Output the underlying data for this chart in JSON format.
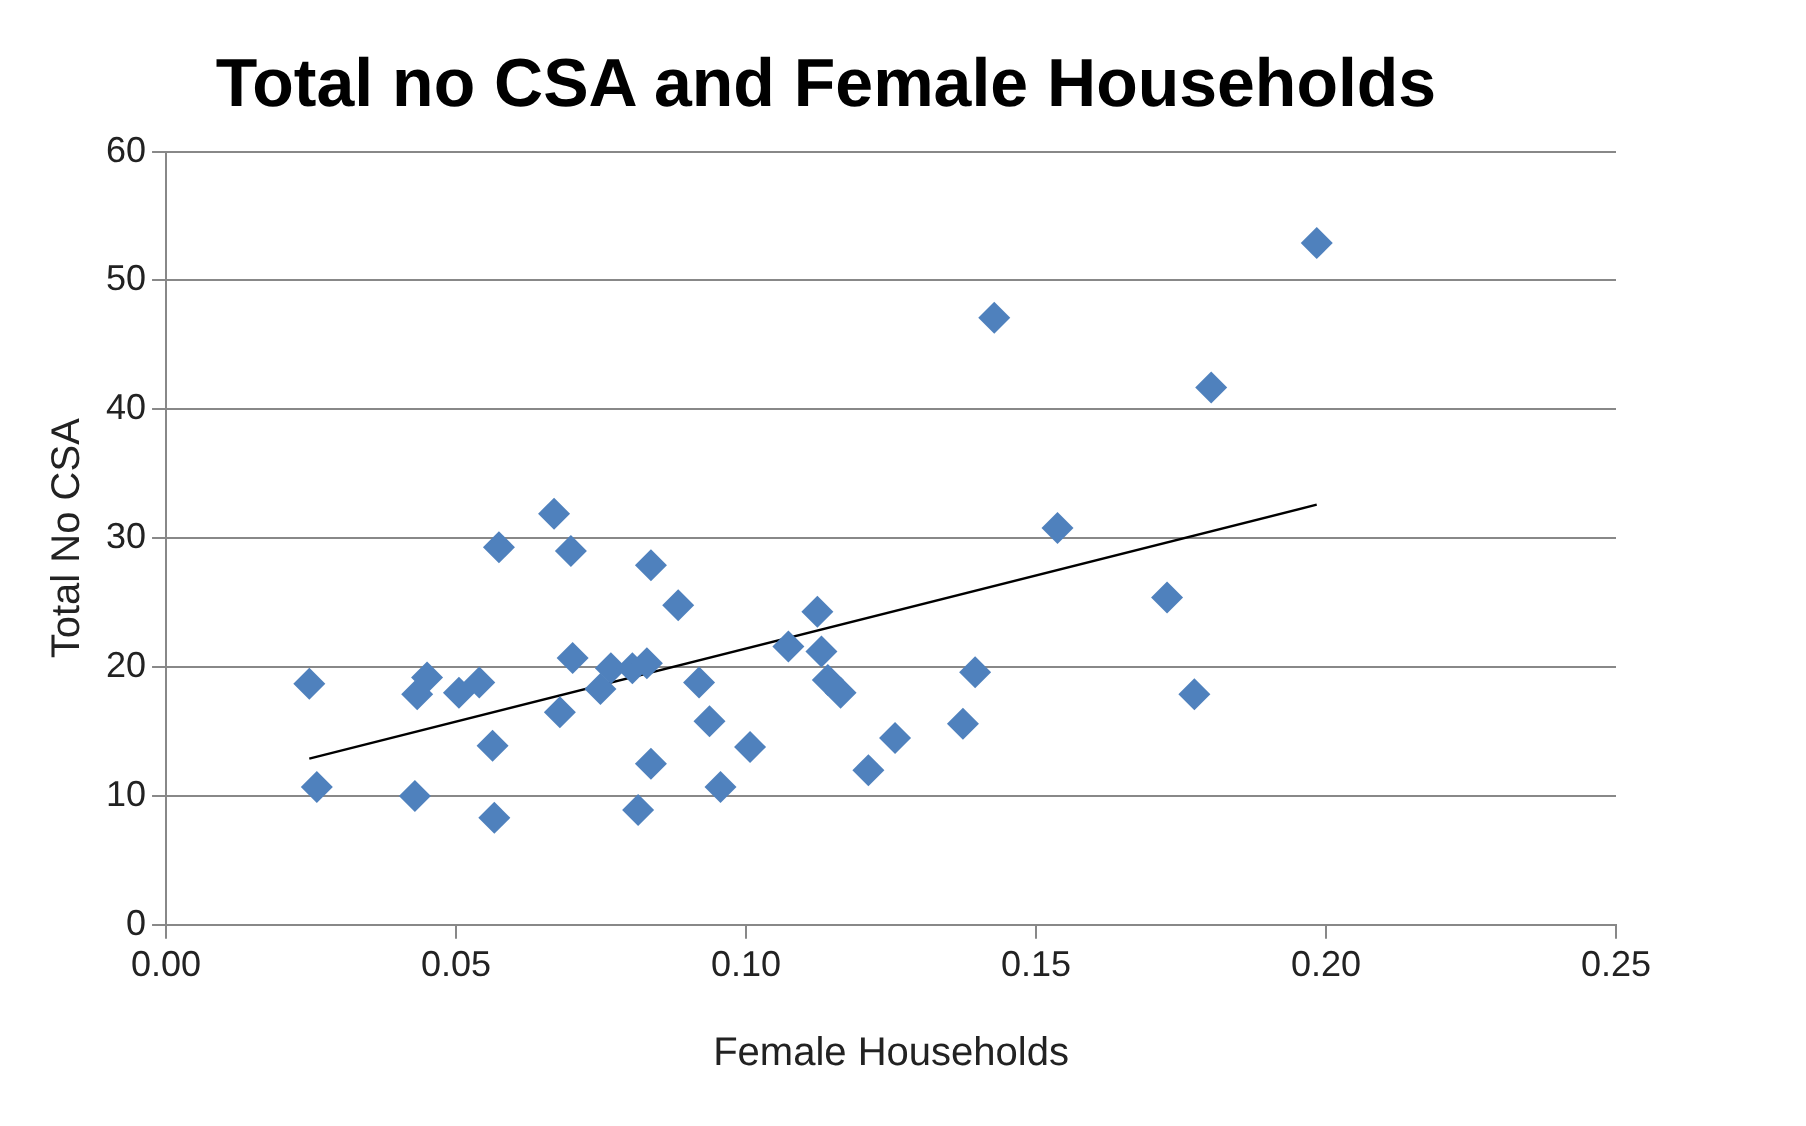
{
  "chart_data": {
    "type": "scatter",
    "title": "Total no CSA and Female Households",
    "xlabel": "Female Households",
    "ylabel": "Total No CSA",
    "xlim": [
      0,
      0.25
    ],
    "xticks": [
      {
        "value": 0,
        "label": "0.00"
      },
      {
        "value": 0.05,
        "label": "0.05"
      },
      {
        "value": 0.1,
        "label": "0.10"
      },
      {
        "value": 0.15,
        "label": "0.15"
      },
      {
        "value": 0.2,
        "label": "0.20"
      },
      {
        "value": 0.25,
        "label": "0.25"
      }
    ],
    "ylim": [
      0,
      60
    ],
    "yticks": [
      0,
      10,
      20,
      30,
      40,
      50,
      60
    ],
    "grid": "y",
    "legend": false,
    "marker": "diamond",
    "series": [
      {
        "type": "scatter",
        "color": "#4f81bd",
        "x": [
          0.0247,
          0.026,
          0.0429,
          0.0433,
          0.045,
          0.0505,
          0.054,
          0.0563,
          0.0566,
          0.0574,
          0.0669,
          0.0698,
          0.0701,
          0.0679,
          0.0749,
          0.0767,
          0.0804,
          0.0829,
          0.0836,
          0.0836,
          0.0814,
          0.0883,
          0.0919,
          0.0937,
          0.0956,
          0.1007,
          0.1073,
          0.1123,
          0.113,
          0.1141,
          0.1163,
          0.1211,
          0.1257,
          0.1374,
          0.1395,
          0.1428,
          0.1537,
          0.1726,
          0.1773,
          0.1802,
          0.1984
        ],
        "values": [
          18.7,
          10.7,
          10.0,
          17.9,
          19.2,
          18.0,
          18.8,
          13.9,
          8.3,
          29.3,
          31.9,
          29.0,
          20.7,
          16.5,
          18.3,
          19.9,
          19.9,
          20.3,
          27.9,
          12.5,
          8.9,
          24.8,
          18.8,
          15.8,
          10.7,
          13.8,
          21.6,
          24.3,
          21.2,
          19.0,
          18.0,
          12.0,
          14.5,
          15.6,
          19.6,
          47.1,
          30.8,
          25.4,
          17.9,
          41.7,
          52.9
        ]
      },
      {
        "type": "line",
        "color": "#000000",
        "x": [
          0.0247,
          0.1984
        ],
        "values": [
          12.9,
          32.6
        ],
        "marker": "none"
      }
    ]
  }
}
